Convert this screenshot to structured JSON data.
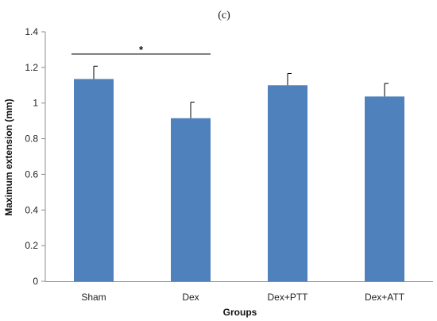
{
  "panel_label": "(c)",
  "chart_data": {
    "type": "bar",
    "title": "",
    "xlabel": "Groups",
    "ylabel": "Maximum extension (mm)",
    "categories": [
      "Sham",
      "Dex",
      "Dex+PTT",
      "Dex+ATT"
    ],
    "values": [
      1.135,
      0.915,
      1.1,
      1.037
    ],
    "errors": [
      0.072,
      0.09,
      0.066,
      0.073
    ],
    "ylim": [
      0,
      1.4
    ],
    "yticks": [
      "0",
      "0.2",
      "0.4",
      "0.6",
      "0.8",
      "1",
      "1.2",
      "1.4"
    ],
    "grid": false,
    "legend": "none",
    "bar_color": "#4f81bd",
    "significance": {
      "from": "Sham",
      "to": "Dex",
      "label": "*"
    }
  }
}
